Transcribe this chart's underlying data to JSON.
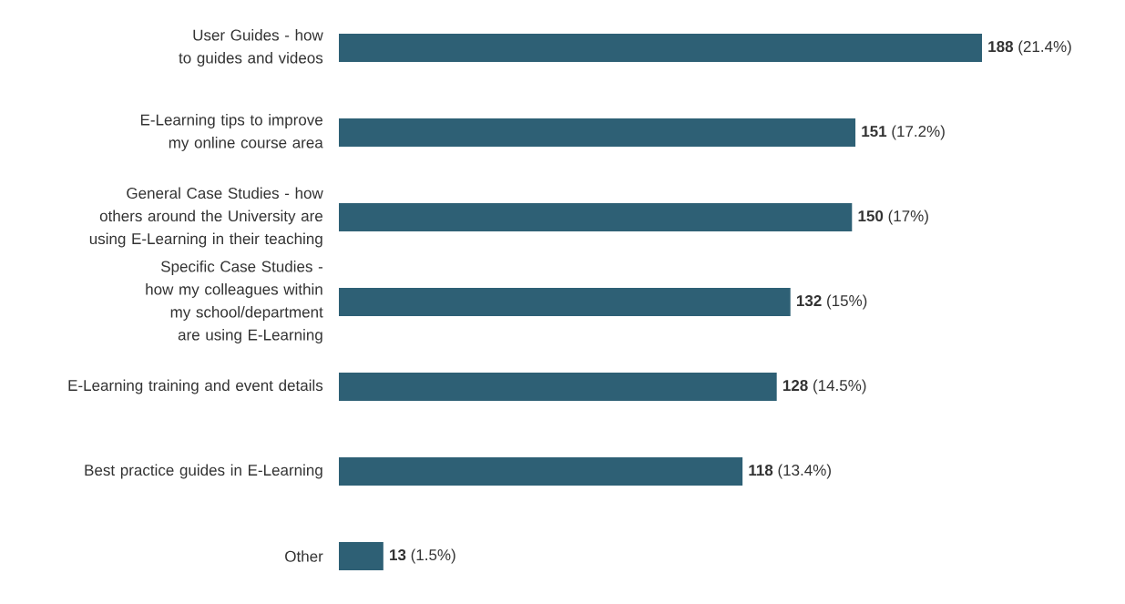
{
  "chart_data": {
    "type": "bar",
    "orientation": "horizontal",
    "categories": [
      "User Guides - how to guides and videos",
      "E-Learning tips to improve my online course area",
      "General Case Studies - how others around the University are using E-Learning in their teaching",
      "Specific Case Studies - how my colleagues within my school/department are using E-Learning",
      "E-Learning training and event details",
      "Best practice guides in E-Learning",
      "Other"
    ],
    "values": [
      188,
      151,
      150,
      132,
      128,
      118,
      13
    ],
    "value_labels": [
      "**188** (21.4%)",
      "**151** (17.2%)",
      "**150** (17%)",
      "**132** (15%)",
      "**128** (14.5%)",
      "**118** (13.4%)",
      "**13** (1.5%)"
    ],
    "color": "#2e6075",
    "tick_labels": "y"
  }
}
